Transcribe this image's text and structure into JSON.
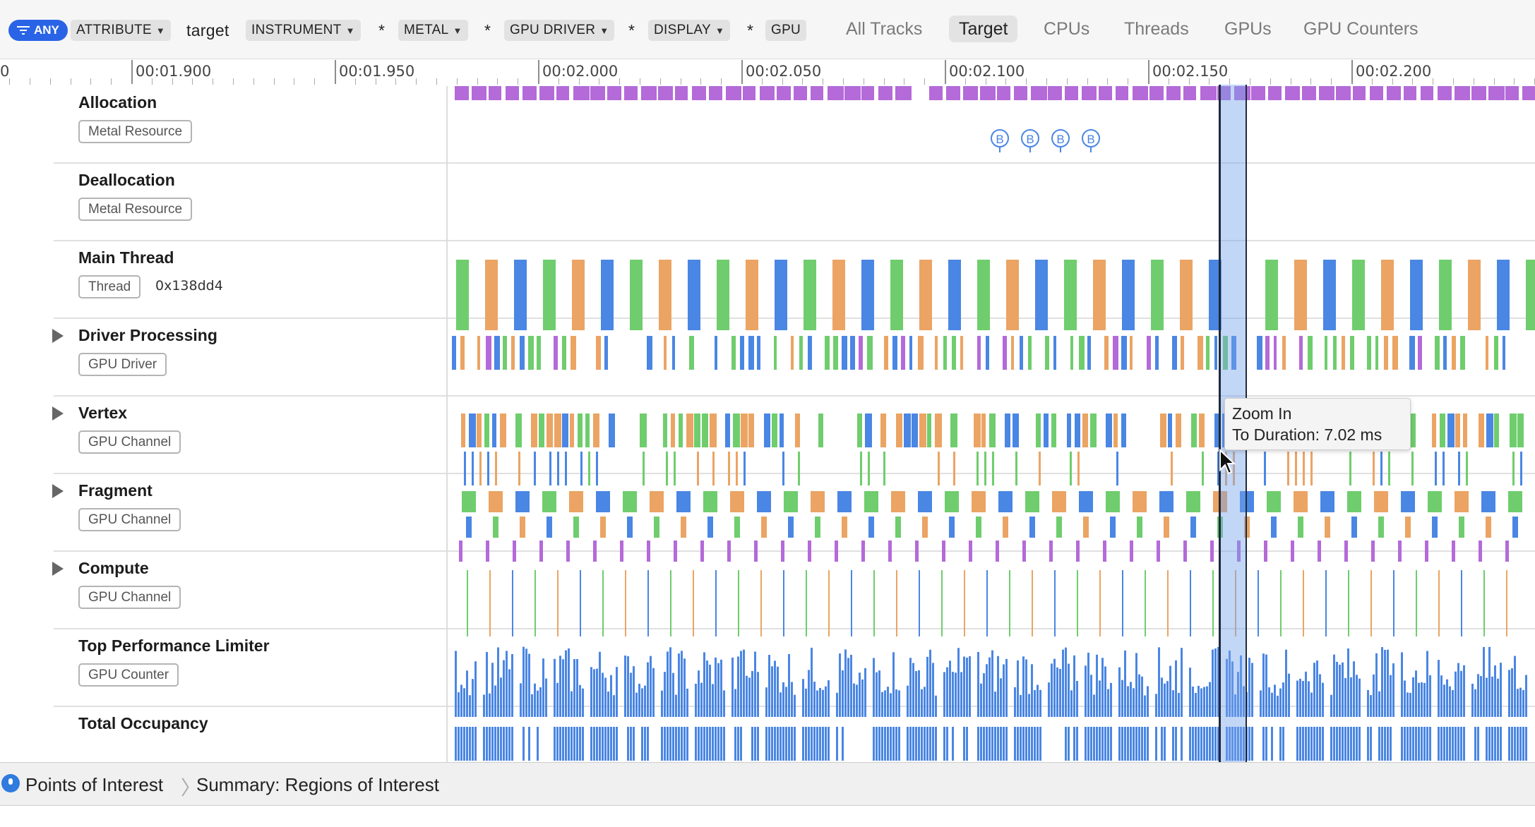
{
  "filter_bar": {
    "any_label": "ANY",
    "tokens": [
      "ATTRIBUTE",
      "target",
      "INSTRUMENT",
      "*",
      "METAL",
      "*",
      "GPU DRIVER",
      "*",
      "DISPLAY",
      "*",
      "GPU"
    ]
  },
  "scope_tabs": [
    "All Tracks",
    "Target",
    "CPUs",
    "Threads",
    "GPUs",
    "GPU Counters"
  ],
  "active_scope": "Target",
  "ruler": {
    "edge_label": "0",
    "labels": [
      "00:01.900",
      "00:01.950",
      "00:02.000",
      "00:02.050",
      "00:02.100",
      "00:02.150",
      "00:02.200"
    ]
  },
  "tracks": [
    {
      "name": "Allocation",
      "badge": "Metal Resource",
      "extra": "",
      "expandable": false
    },
    {
      "name": "Deallocation",
      "badge": "Metal Resource",
      "extra": "",
      "expandable": false
    },
    {
      "name": "Main Thread",
      "badge": "Thread",
      "extra": "0x138dd4",
      "expandable": false
    },
    {
      "name": "Driver Processing",
      "badge": "GPU Driver",
      "extra": "",
      "expandable": true
    },
    {
      "name": "Vertex",
      "badge": "GPU Channel",
      "extra": "",
      "expandable": true
    },
    {
      "name": "Fragment",
      "badge": "GPU Channel",
      "extra": "",
      "expandable": true
    },
    {
      "name": "Compute",
      "badge": "GPU Channel",
      "extra": "",
      "expandable": true
    },
    {
      "name": "Top Performance Limiter",
      "badge": "GPU Counter",
      "extra": "",
      "expandable": false
    },
    {
      "name": "Total Occupancy",
      "badge": "",
      "extra": "",
      "expandable": false
    }
  ],
  "allocation_markers": [
    "B",
    "B",
    "B",
    "B"
  ],
  "tooltip": {
    "line1": "Zoom In",
    "line2": "To Duration: 7.02 ms"
  },
  "breadcrumb": {
    "item1": "Points of Interest",
    "item2": "Summary: Regions of Interest"
  },
  "colors": {
    "green": "#6fcd6d",
    "orange": "#eba463",
    "blue": "#4a86e3",
    "purple": "#b46ad8",
    "accent": "#2a64e6"
  }
}
